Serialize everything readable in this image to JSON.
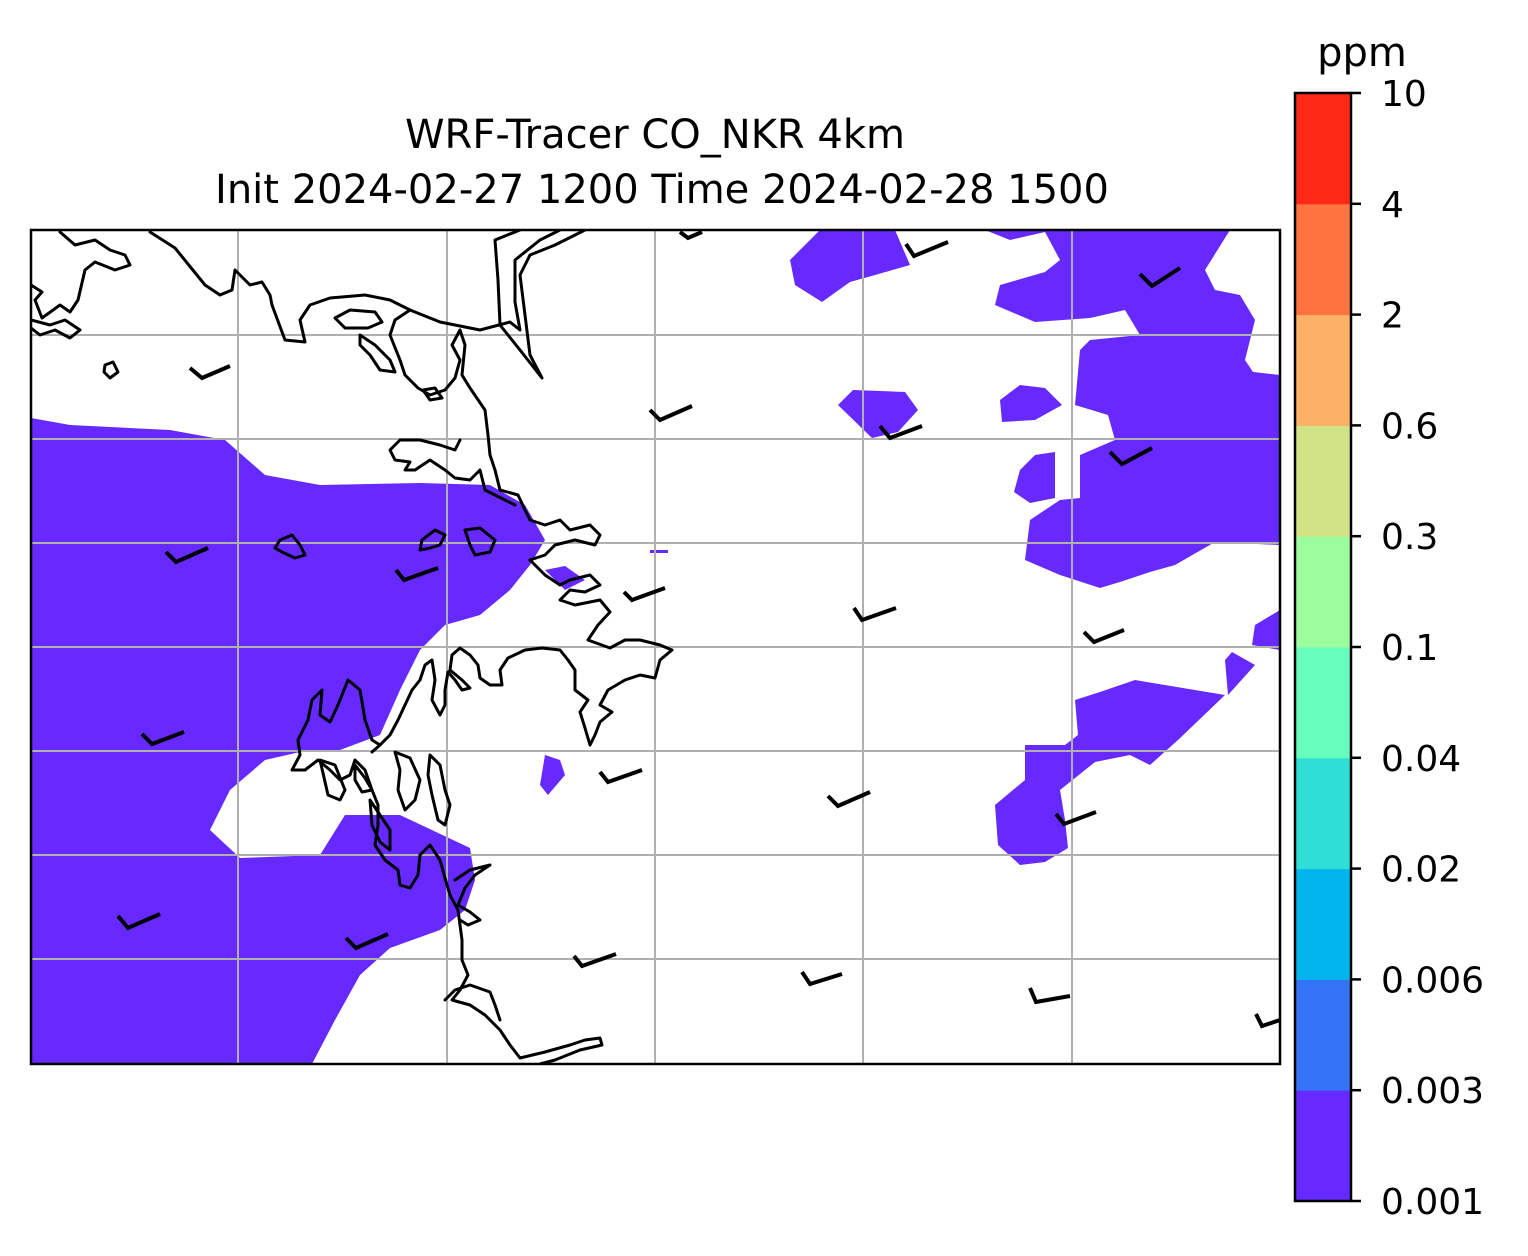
{
  "figure": {
    "title_line1": "WRF-Tracer CO_NKR 4km",
    "title_line2": "Init 2024-02-27 1200 Time 2024-02-28 1500"
  },
  "colorbar": {
    "unit": "ppm",
    "levels": [
      "0.001",
      "0.003",
      "0.006",
      "0.02",
      "0.04",
      "0.1",
      "0.3",
      "0.6",
      "2",
      "4",
      "10"
    ],
    "colors": [
      "#6629ff",
      "#3574f6",
      "#02b5ed",
      "#2fdfd6",
      "#66fdbd",
      "#9bfd9e",
      "#d0e386",
      "#fdb167",
      "#fe733f",
      "#fe2a17"
    ]
  },
  "map": {
    "concentration_color": "#6629ff",
    "gridline_color": "#b0b0b0",
    "coastline_color": "#000000"
  }
}
